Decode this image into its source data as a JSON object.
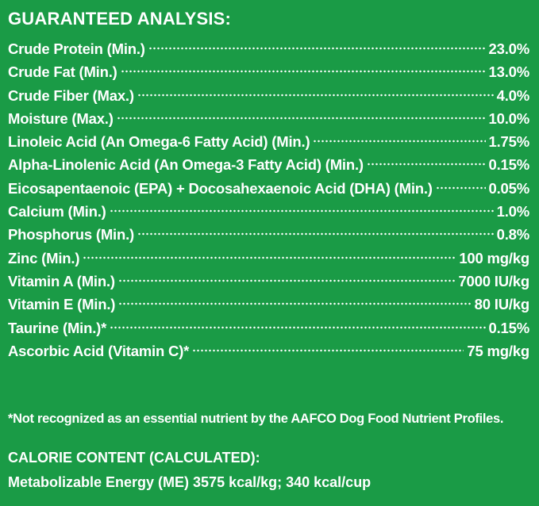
{
  "heading": "GUARANTEED ANALYSIS:",
  "nutrients": [
    {
      "label": "Crude Protein (Min.)",
      "value": "23.0%"
    },
    {
      "label": "Crude Fat (Min.)",
      "value": "13.0%"
    },
    {
      "label": "Crude Fiber (Max.)",
      "value": "4.0%"
    },
    {
      "label": "Moisture (Max.)",
      "value": "10.0%"
    },
    {
      "label": "Linoleic Acid (An Omega-6 Fatty Acid) (Min.)",
      "value": "1.75%"
    },
    {
      "label": "Alpha-Linolenic Acid (An Omega-3 Fatty Acid) (Min.)",
      "value": "0.15%"
    },
    {
      "label": "Eicosapentaenoic (EPA) + Docosahexaenoic Acid (DHA) (Min.)",
      "value": "0.05%"
    },
    {
      "label": "Calcium (Min.)",
      "value": "1.0%"
    },
    {
      "label": "Phosphorus (Min.)",
      "value": "0.8%"
    },
    {
      "label": "Zinc (Min.)",
      "value": "100 mg/kg"
    },
    {
      "label": "Vitamin A (Min.)",
      "value": "7000 IU/kg"
    },
    {
      "label": "Vitamin E (Min.)",
      "value": "80 IU/kg"
    },
    {
      "label": "Taurine (Min.)*",
      "value": "0.15%"
    },
    {
      "label": "Ascorbic Acid (Vitamin C)*",
      "value": "75 mg/kg"
    }
  ],
  "footnote": "*Not recognized as an essential nutrient by the AAFCO Dog Food Nutrient Profiles.",
  "calorie": {
    "heading": "CALORIE CONTENT (CALCULATED):",
    "line": "Metabolizable Energy (ME) 3575 kcal/kg;  340 kcal/cup"
  },
  "colors": {
    "background": "#1a9b46",
    "text": "#ffffff"
  }
}
